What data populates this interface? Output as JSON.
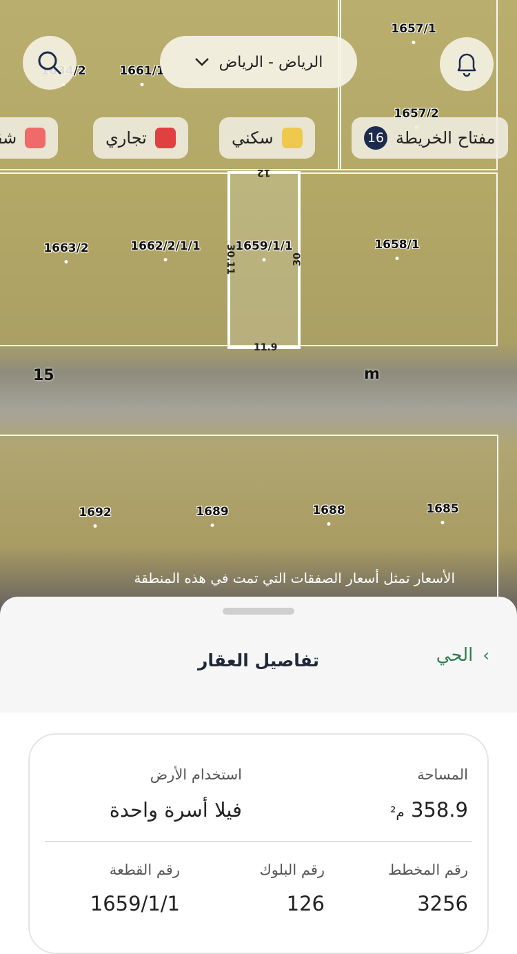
{
  "map": {
    "parcels": [
      "1657/1",
      "1661/1",
      "1634/2",
      "1657/2",
      "1663/2",
      "1662/2/1/1",
      "1659/1/1",
      "1658/1",
      "1692",
      "1689",
      "1688",
      "1685"
    ],
    "dimensions": {
      "top": "12",
      "left": "30.11",
      "right": "30",
      "bottom": "11.9"
    },
    "streets": [
      "15",
      "m"
    ],
    "caption": "الأسعار تمثل أسعار الصفقات التي تمت في هذه المنطقة"
  },
  "header": {
    "city": "الرياض - الرياض",
    "search_icon": "search-icon",
    "bell_icon": "bell-icon"
  },
  "legend": {
    "key_label": "مفتاح الخريطة",
    "count": "16",
    "items": [
      {
        "label": "سكني",
        "color": "#efc94c"
      },
      {
        "label": "تجاري",
        "color": "#e04040"
      },
      {
        "label": "شقق",
        "color": "#f06a6a"
      }
    ]
  },
  "sheet": {
    "title": "تفاصيل العقار",
    "back_label": "الحي",
    "area_label": "المساحة",
    "area_value": "358.9",
    "area_unit": "م²",
    "land_use_label": "استخدام الأرض",
    "land_use_value": "فيلا أسرة واحدة",
    "plan_label": "رقم المخطط",
    "plan_value": "3256",
    "block_label": "رقم البلوك",
    "block_value": "126",
    "plot_label": "رقم القطعة",
    "plot_value": "1659/1/1"
  }
}
